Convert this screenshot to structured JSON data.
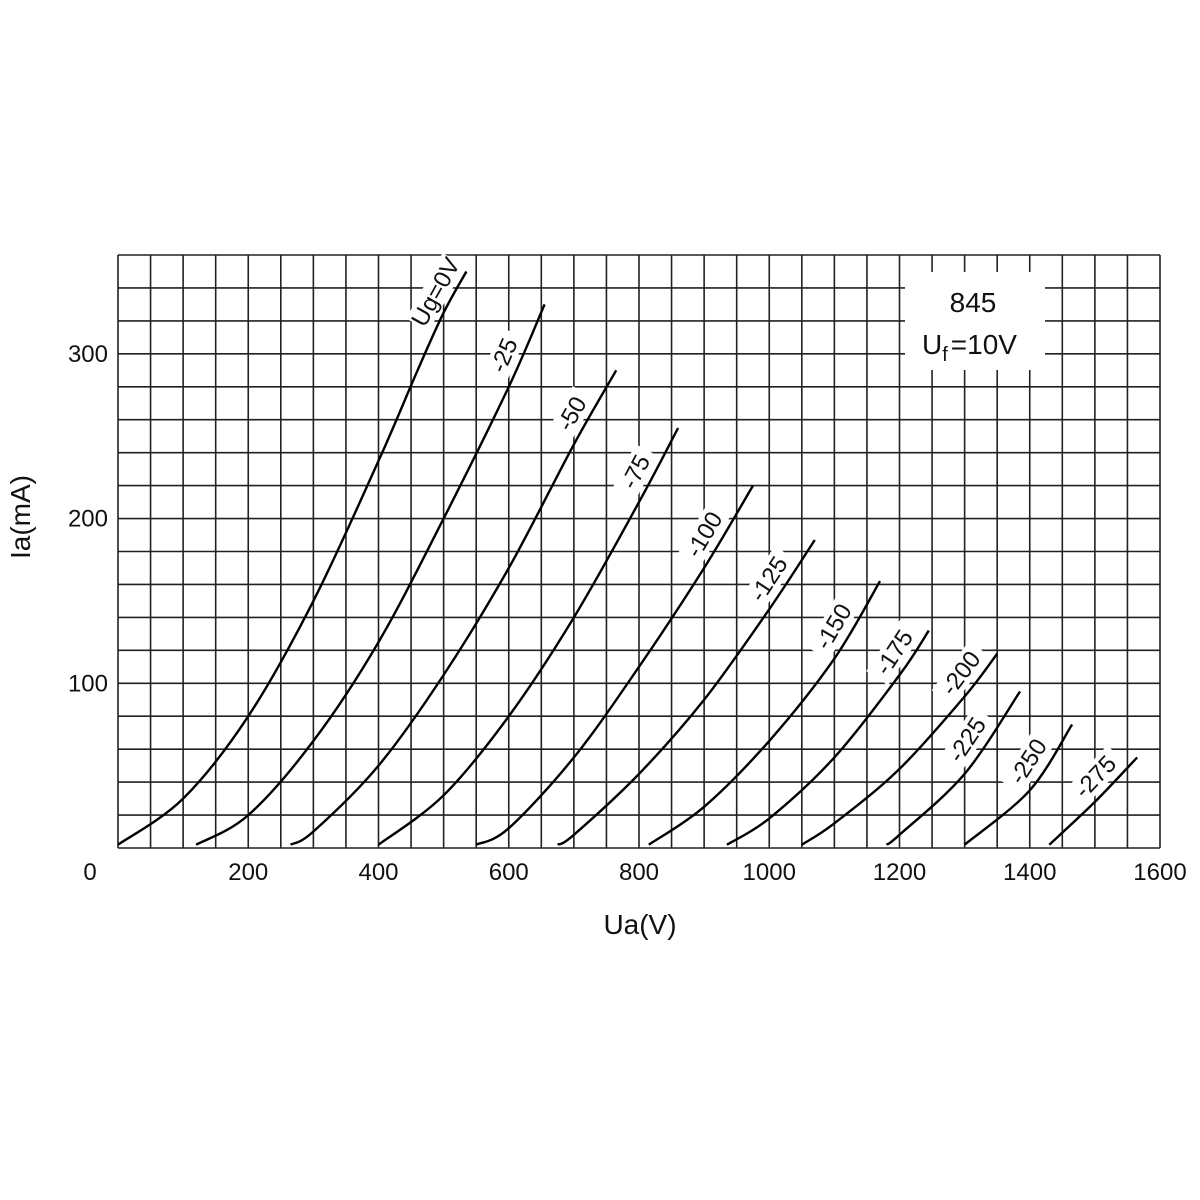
{
  "chart_data": {
    "type": "line",
    "title": "",
    "xlabel": "Ua(V)",
    "ylabel": "Ia(mA)",
    "xlim": [
      0,
      1600
    ],
    "ylim": [
      0,
      360
    ],
    "grid": true,
    "legend": "none",
    "x_ticks": [
      "0",
      "200",
      "400",
      "600",
      "800",
      "1000",
      "1200",
      "1400",
      "1600"
    ],
    "y_ticks": [
      "100",
      "200",
      "300"
    ],
    "annotation": {
      "tube": "845",
      "heater_main": "U",
      "heater_sub": "f",
      "heater_value": "=10V"
    },
    "series": [
      {
        "name": "Ug=0V",
        "x": [
          0,
          100,
          200,
          300,
          400,
          460,
          500,
          535
        ],
        "y": [
          2,
          30,
          80,
          150,
          235,
          290,
          325,
          350
        ]
      },
      {
        "name": "-25",
        "x": [
          120,
          200,
          300,
          400,
          500,
          600,
          655
        ],
        "y": [
          2,
          20,
          65,
          125,
          200,
          280,
          330
        ]
      },
      {
        "name": "-50",
        "x": [
          265,
          300,
          400,
          500,
          600,
          700,
          765
        ],
        "y": [
          2,
          10,
          50,
          105,
          170,
          245,
          290
        ]
      },
      {
        "name": "-75",
        "x": [
          400,
          500,
          600,
          700,
          800,
          860
        ],
        "y": [
          2,
          32,
          80,
          140,
          210,
          255
        ]
      },
      {
        "name": "-100",
        "x": [
          550,
          600,
          700,
          800,
          900,
          975
        ],
        "y": [
          2,
          12,
          55,
          110,
          170,
          220
        ]
      },
      {
        "name": "-125",
        "x": [
          675,
          700,
          800,
          900,
          1000,
          1070
        ],
        "y": [
          2,
          8,
          45,
          90,
          145,
          187
        ]
      },
      {
        "name": "-150",
        "x": [
          815,
          900,
          1000,
          1100,
          1170
        ],
        "y": [
          2,
          25,
          65,
          115,
          162
        ]
      },
      {
        "name": "-175",
        "x": [
          935,
          1000,
          1100,
          1200,
          1245
        ],
        "y": [
          2,
          18,
          55,
          105,
          132
        ]
      },
      {
        "name": "-200",
        "x": [
          1050,
          1100,
          1200,
          1300,
          1350
        ],
        "y": [
          2,
          15,
          48,
          92,
          118
        ]
      },
      {
        "name": "-225",
        "x": [
          1180,
          1200,
          1300,
          1385
        ],
        "y": [
          2,
          8,
          45,
          95
        ]
      },
      {
        "name": "-250",
        "x": [
          1300,
          1400,
          1465
        ],
        "y": [
          2,
          35,
          75
        ]
      },
      {
        "name": "-275",
        "x": [
          1430,
          1500,
          1565
        ],
        "y": [
          2,
          28,
          55
        ]
      }
    ]
  }
}
